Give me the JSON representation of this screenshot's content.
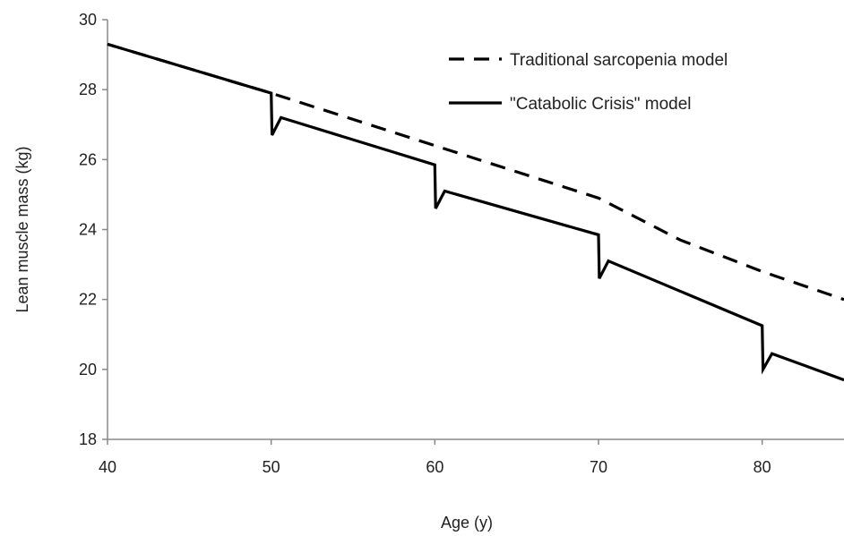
{
  "chart_data": {
    "type": "line",
    "title": "",
    "xlabel": "Age (y)",
    "ylabel": "Lean muscle mass (kg)",
    "xlim": [
      40,
      85
    ],
    "ylim": [
      18,
      30
    ],
    "x_ticks": [
      40,
      50,
      60,
      70,
      80
    ],
    "y_ticks": [
      18,
      20,
      22,
      24,
      26,
      28,
      30
    ],
    "x_tick_labels": [
      "40",
      "50",
      "60",
      "70",
      "80"
    ],
    "y_tick_labels": [
      "18",
      "20",
      "22",
      "24",
      "26",
      "28",
      "30"
    ],
    "grid": false,
    "legend_position": "top-right",
    "colors": {
      "line": "#000000",
      "axis": "#888888",
      "text": "#222222"
    },
    "series": [
      {
        "name": "Traditional sarcopenia model",
        "style": "dashed",
        "points": [
          [
            40,
            29.3
          ],
          [
            50,
            27.9
          ],
          [
            60,
            26.4
          ],
          [
            70,
            24.9
          ],
          [
            75,
            23.7
          ],
          [
            80,
            22.8
          ],
          [
            85,
            22.0
          ]
        ]
      },
      {
        "name": "\"Catabolic Crisis\" model",
        "style": "solid",
        "points": [
          [
            40,
            29.3
          ],
          [
            50,
            27.9
          ],
          [
            50.05,
            26.7
          ],
          [
            50.6,
            27.2
          ],
          [
            60,
            25.85
          ],
          [
            60.05,
            24.6
          ],
          [
            60.6,
            25.1
          ],
          [
            70,
            23.85
          ],
          [
            70.05,
            22.6
          ],
          [
            70.6,
            23.1
          ],
          [
            80,
            21.25
          ],
          [
            80.05,
            20.0
          ],
          [
            80.6,
            20.45
          ],
          [
            85,
            19.7
          ]
        ]
      }
    ]
  }
}
